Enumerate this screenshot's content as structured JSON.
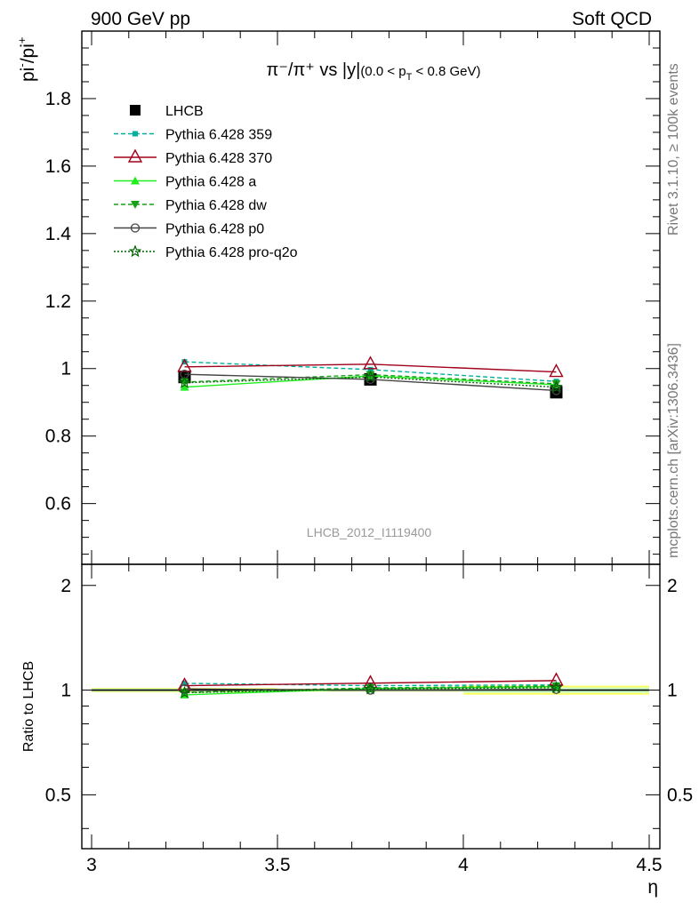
{
  "header": {
    "left": "900 GeV pp",
    "right": "Soft QCD"
  },
  "side_labels": {
    "rivet": "Rivet 3.1.10, ≥ 100k events",
    "mcplots": "mcplots.cern.ch [arXiv:1306.3436]"
  },
  "watermark": "LHCB_2012_I1119400",
  "chart_data": [
    {
      "type": "line",
      "panel": "main",
      "title": "π⁻/π⁺ vs |y|(0.0 < p_T < 0.8 GeV)",
      "title_parts": {
        "main": "π⁻/π⁺ vs |y|",
        "range": "(0.0 < p",
        "sub": "T",
        "range_end": " < 0.8 GeV)"
      },
      "ylabel": "pi⁻/pi⁺",
      "ylabel_parts": {
        "base1": "pi",
        "sup1": "-",
        "base2": "/pi",
        "sup2": "+"
      },
      "xlim": [
        3.0,
        4.5
      ],
      "ylim": [
        0.42,
        2.0
      ],
      "yticks": [
        0.6,
        0.8,
        1.0,
        1.2,
        1.4,
        1.6,
        1.8
      ],
      "ytick_labels": [
        "0.6",
        "0.8",
        "1",
        "1.2",
        "1.4",
        "1.6",
        "1.8"
      ],
      "x": [
        3.25,
        3.75,
        4.25
      ],
      "series": [
        {
          "name": "LHCB",
          "values": [
            0.975,
            0.968,
            0.93
          ],
          "color": "#000000",
          "marker": "square-filled",
          "line": "none"
        },
        {
          "name": "Pythia 6.428 359",
          "values": [
            1.02,
            0.997,
            0.962
          ],
          "color": "#00b09a",
          "marker": "square-small",
          "line": "dashed"
        },
        {
          "name": "Pythia 6.428 370",
          "values": [
            1.005,
            1.013,
            0.99
          ],
          "color": "#a0001a",
          "marker": "triangle-open",
          "line": "solid"
        },
        {
          "name": "Pythia 6.428 a",
          "values": [
            0.945,
            0.978,
            0.952
          ],
          "color": "#22ee22",
          "marker": "triangle-filled",
          "line": "solid"
        },
        {
          "name": "Pythia 6.428 dw",
          "values": [
            0.96,
            0.982,
            0.955
          ],
          "color": "#16a016",
          "marker": "triangle-down",
          "line": "dashed"
        },
        {
          "name": "Pythia 6.428 p0",
          "values": [
            0.983,
            0.968,
            0.935
          ],
          "color": "#444444",
          "marker": "circle-open",
          "line": "solid"
        },
        {
          "name": "Pythia 6.428 pro-q2o",
          "values": [
            0.958,
            0.975,
            0.945
          ],
          "color": "#006400",
          "marker": "star-open",
          "line": "dotted"
        }
      ]
    },
    {
      "type": "line",
      "panel": "ratio",
      "ylabel": "Ratio to LHCB",
      "xlabel": "η",
      "xlim": [
        3.0,
        4.5
      ],
      "ylim": [
        0.35,
        2.3
      ],
      "log_y": true,
      "yticks": [
        0.5,
        1,
        2
      ],
      "ytick_labels": [
        "0.5",
        "1",
        "2"
      ],
      "xticks": [
        3.0,
        3.5,
        4.0,
        4.5
      ],
      "xtick_labels": [
        "3",
        "3.5",
        "4",
        "4.5"
      ],
      "x": [
        3.25,
        3.75,
        4.25
      ],
      "band_color": "#ffff66",
      "band_inner_color": "#ccffcc",
      "series": [
        {
          "name": "Pythia 6.428 359",
          "values": [
            1.046,
            1.03,
            1.035
          ]
        },
        {
          "name": "Pythia 6.428 370",
          "values": [
            1.03,
            1.047,
            1.065
          ]
        },
        {
          "name": "Pythia 6.428 a",
          "values": [
            0.969,
            1.01,
            1.024
          ]
        },
        {
          "name": "Pythia 6.428 dw",
          "values": [
            0.985,
            1.015,
            1.027
          ]
        },
        {
          "name": "Pythia 6.428 p0",
          "values": [
            1.008,
            1.0,
            1.005
          ]
        },
        {
          "name": "Pythia 6.428 pro-q2o",
          "values": [
            0.983,
            1.007,
            1.016
          ]
        }
      ]
    }
  ]
}
